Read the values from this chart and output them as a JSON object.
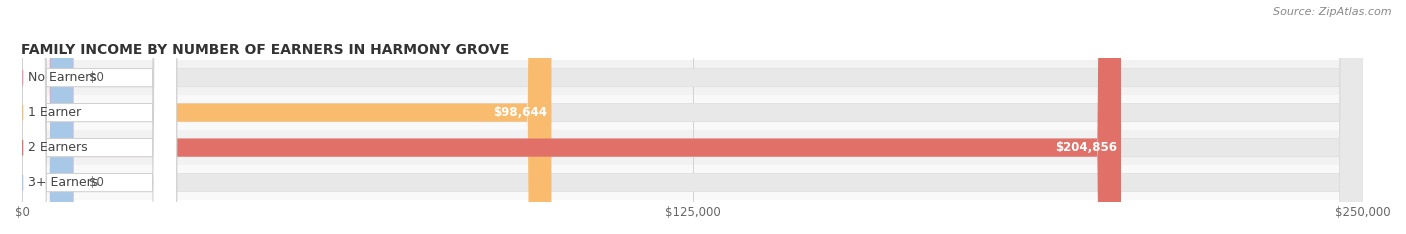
{
  "title": "FAMILY INCOME BY NUMBER OF EARNERS IN HARMONY GROVE",
  "source": "Source: ZipAtlas.com",
  "categories": [
    "No Earners",
    "1 Earner",
    "2 Earners",
    "3+ Earners"
  ],
  "values": [
    0,
    98644,
    204856,
    0
  ],
  "bar_colors": [
    "#f590b0",
    "#f9bc6e",
    "#e07068",
    "#a8c8e8"
  ],
  "xlim": [
    0,
    250000
  ],
  "xtick_vals": [
    0,
    125000,
    250000
  ],
  "xtick_labels": [
    "$0",
    "$125,000",
    "$250,000"
  ],
  "value_labels": [
    "$0",
    "$98,644",
    "$204,856",
    "$0"
  ],
  "row_colors": [
    "#f2f2f2",
    "#f9f9f9",
    "#f2f2f2",
    "#f9f9f9"
  ],
  "bar_bg_color": "#e8e8e8",
  "title_fontsize": 10,
  "tick_fontsize": 8.5,
  "label_fontsize": 9,
  "value_fontsize": 8.5,
  "bar_height": 0.52,
  "fig_width": 14.06,
  "fig_height": 2.34
}
